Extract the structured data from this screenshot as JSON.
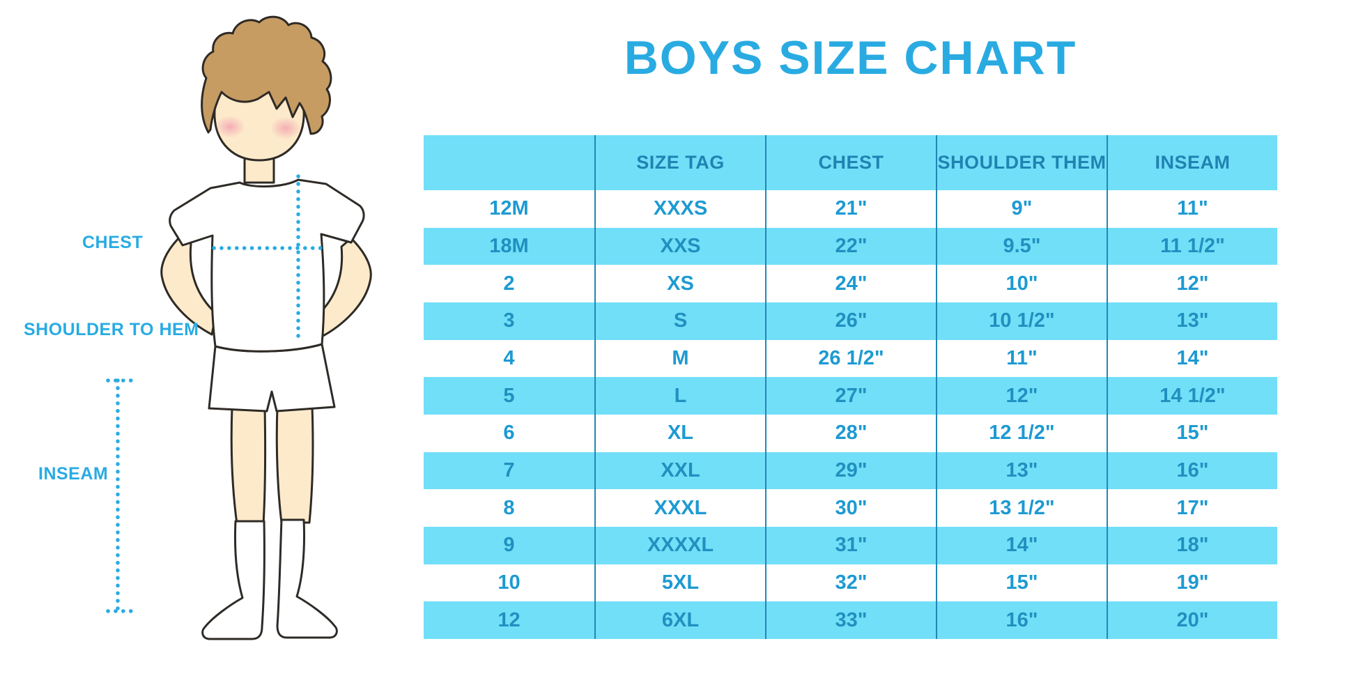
{
  "title": "BOYS SIZE CHART",
  "figure_labels": {
    "chest": "CHEST",
    "shoulder_to_hem": "SHOULDER TO HEM",
    "inseam": "INSEAM"
  },
  "colors": {
    "accent": "#29ABE2",
    "stripe": "#72DFF8",
    "header_text": "#1F83B2",
    "cell_text_white_rows": "#1D9AD2",
    "cell_text_blue_rows": "#2090C0",
    "grid_line": "#2187B6",
    "hair": "#C69C63",
    "skin": "#FCEACA",
    "blush": "#F399AF"
  },
  "chart_data": {
    "type": "table",
    "title": "BOYS SIZE CHART",
    "columns": [
      "",
      "SIZE TAG",
      "CHEST",
      "SHOULDER THEM",
      "INSEAM"
    ],
    "rows": [
      [
        "12M",
        "XXXS",
        "21\"",
        "9\"",
        "11\""
      ],
      [
        "18M",
        "XXS",
        "22\"",
        "9.5\"",
        "11 1/2\""
      ],
      [
        "2",
        "XS",
        "24\"",
        "10\"",
        "12\""
      ],
      [
        "3",
        "S",
        "26\"",
        "10 1/2\"",
        "13\""
      ],
      [
        "4",
        "M",
        "26 1/2\"",
        "11\"",
        "14\""
      ],
      [
        "5",
        "L",
        "27\"",
        "12\"",
        "14 1/2\""
      ],
      [
        "6",
        "XL",
        "28\"",
        "12 1/2\"",
        "15\""
      ],
      [
        "7",
        "XXL",
        "29\"",
        "13\"",
        "16\""
      ],
      [
        "8",
        "XXXL",
        "30\"",
        "13 1/2\"",
        "17\""
      ],
      [
        "9",
        "XXXXL",
        "31\"",
        "14\"",
        "18\""
      ],
      [
        "10",
        "5XL",
        "32\"",
        "15\"",
        "19\""
      ],
      [
        "12",
        "6XL",
        "33\"",
        "16\"",
        "20\""
      ]
    ],
    "row_striping": "header and odd data rows light blue, others white",
    "legend_position": "none",
    "grid": "vertical column separators only"
  }
}
